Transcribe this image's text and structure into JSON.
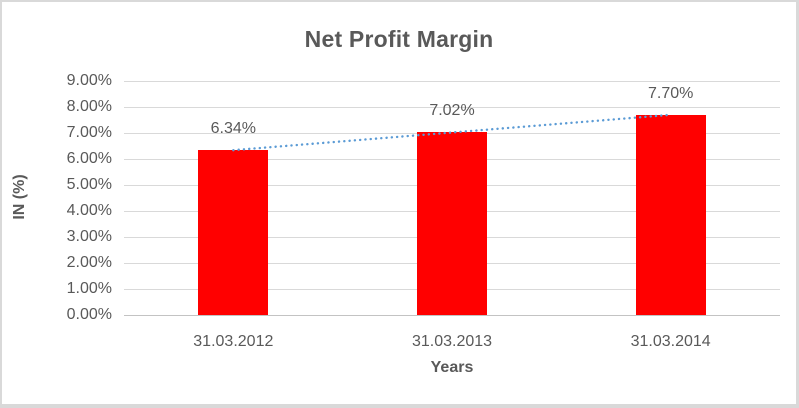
{
  "chart_data": {
    "type": "bar",
    "title": "Net Profit Margin",
    "xlabel": "Years",
    "ylabel": "IN (%)",
    "categories": [
      "31.03.2012",
      "31.03.2013",
      "31.03.2014"
    ],
    "values": [
      6.34,
      7.02,
      7.7
    ],
    "data_labels": [
      "6.34%",
      "7.02%",
      "7.70%"
    ],
    "ylim": [
      0,
      9
    ],
    "ytick_labels": [
      "0.00%",
      "1.00%",
      "2.00%",
      "3.00%",
      "4.00%",
      "5.00%",
      "6.00%",
      "7.00%",
      "8.00%",
      "9.00%"
    ],
    "grid": true,
    "legend": "none",
    "bar_color": "#ff0000",
    "text_color": "#595959",
    "gridline_color": "#d9d9d9",
    "trendline": {
      "type": "linear",
      "style": "dotted",
      "color": "#5b9bd5",
      "start_value": 6.34,
      "end_value": 7.7
    }
  }
}
